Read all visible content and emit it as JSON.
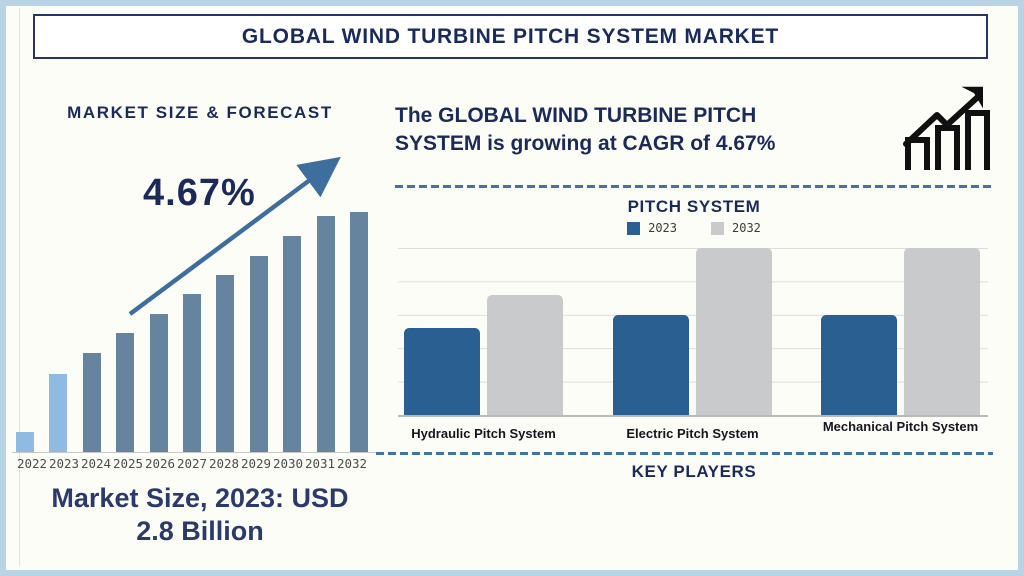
{
  "page": {
    "title": "GLOBAL WIND TURBINE PITCH SYSTEM MARKET"
  },
  "left_panel": {
    "heading": "MARKET SIZE & FORECAST",
    "cagr_annotation": "4.67%",
    "market_size_line1": "Market Size, 2023: USD",
    "market_size_line2": "2.8 Billion"
  },
  "right_panel": {
    "growth_line1": "The GLOBAL WIND TURBINE PITCH",
    "growth_line2": "SYSTEM is growing at CAGR of 4.67%",
    "pitch_heading": "PITCH SYSTEM",
    "key_players_heading": "KEY PLAYERS",
    "growth_icon": "bar-chart-rising-arrow-icon"
  },
  "colors": {
    "navy_text": "#1B2A5A",
    "frame_blue": "#B9D3E6",
    "arrow_blue": "#3D6E9E",
    "dash_blue": "#3E74A6",
    "left_bar_light": "#8FBBE3",
    "left_bar_dark": "#66839F",
    "right_bar_2023": "#2A5F92",
    "right_bar_2032": "#C9CACC"
  },
  "chart_data": [
    {
      "type": "bar",
      "title": "MARKET SIZE & FORECAST",
      "categories": [
        "2022",
        "2023",
        "2024",
        "2025",
        "2026",
        "2027",
        "2028",
        "2029",
        "2030",
        "2031",
        "2032"
      ],
      "values": [
        8.3,
        32.7,
        41.3,
        49.6,
        57.5,
        65.8,
        73.9,
        81.7,
        90.0,
        98.3,
        100
      ],
      "value_unit": "relative bar height, % of tallest bar (no y-axis shown)",
      "highlight_categories": [
        "2022",
        "2023"
      ],
      "annotation": "4.67%",
      "caption": "Market Size, 2023: USD 2.8 Billion",
      "grid": false,
      "legend_position": "none"
    },
    {
      "type": "bar",
      "title": "PITCH SYSTEM",
      "categories": [
        "Hydraulic Pitch System",
        "Electric Pitch System",
        "Mechanical Pitch System"
      ],
      "series": [
        {
          "name": "2023",
          "values": [
            52,
            60,
            60
          ]
        },
        {
          "name": "2032",
          "values": [
            72,
            100,
            100
          ]
        }
      ],
      "value_unit": "relative bar height, % of plot height (no y-axis shown)",
      "grid": true,
      "legend_position": "top"
    }
  ]
}
